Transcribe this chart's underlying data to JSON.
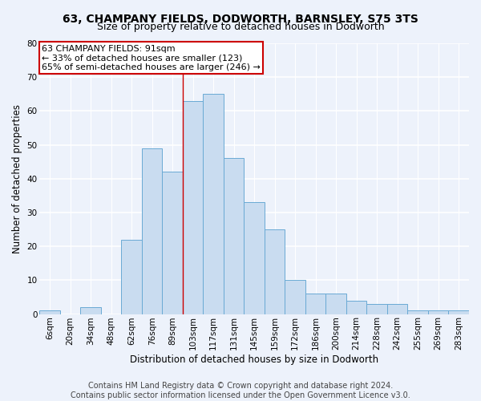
{
  "title1": "63, CHAMPANY FIELDS, DODWORTH, BARNSLEY, S75 3TS",
  "title2": "Size of property relative to detached houses in Dodworth",
  "xlabel": "Distribution of detached houses by size in Dodworth",
  "ylabel": "Number of detached properties",
  "categories": [
    "6sqm",
    "20sqm",
    "34sqm",
    "48sqm",
    "62sqm",
    "76sqm",
    "89sqm",
    "103sqm",
    "117sqm",
    "131sqm",
    "145sqm",
    "159sqm",
    "172sqm",
    "186sqm",
    "200sqm",
    "214sqm",
    "228sqm",
    "242sqm",
    "255sqm",
    "269sqm",
    "283sqm"
  ],
  "values": [
    1,
    0,
    2,
    0,
    22,
    49,
    42,
    63,
    65,
    46,
    33,
    25,
    10,
    6,
    6,
    4,
    3,
    3,
    1,
    1,
    1
  ],
  "bar_color": "#c9dcf0",
  "bar_edge_color": "#6aaad4",
  "annotation_text": "63 CHAMPANY FIELDS: 91sqm\n← 33% of detached houses are smaller (123)\n65% of semi-detached houses are larger (246) →",
  "annotation_box_color": "white",
  "annotation_box_edge_color": "#cc0000",
  "vline_color": "#cc0000",
  "vline_x_index": 6.5,
  "ylim": [
    0,
    80
  ],
  "yticks": [
    0,
    10,
    20,
    30,
    40,
    50,
    60,
    70,
    80
  ],
  "footer": "Contains HM Land Registry data © Crown copyright and database right 2024.\nContains public sector information licensed under the Open Government Licence v3.0.",
  "background_color": "#edf2fb",
  "grid_color": "white",
  "title1_fontsize": 10,
  "title2_fontsize": 9,
  "axis_label_fontsize": 8.5,
  "tick_fontsize": 7.5,
  "footer_fontsize": 7,
  "annot_fontsize": 8
}
